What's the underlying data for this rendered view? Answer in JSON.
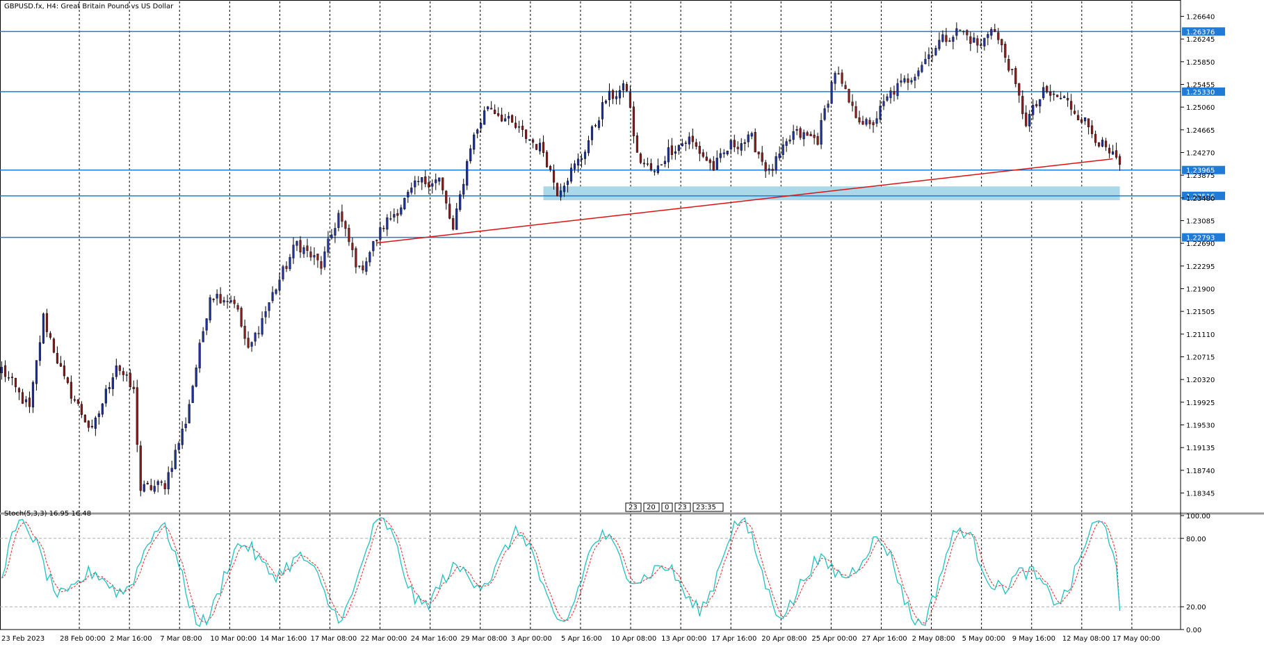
{
  "window": {
    "title": "GBPUSD.fx, H4:  Great Britain Pound vs US Dollar",
    "indicator_label": "Stoch(5,3,3) 16.95 16.48",
    "scroll_labels": [
      "23",
      "20",
      "0",
      "23",
      "23:35"
    ]
  },
  "colors": {
    "bull_candle": "#1e2f9e",
    "bear_candle": "#8b1a1a",
    "hline": "#1f7bd6",
    "trendline": "#e01010",
    "zone": "#a9d8e8",
    "stoch_main": "#20c0c0",
    "stoch_signal": "#e02020",
    "grid": "#000000"
  },
  "chart_data": {
    "type": "candlestick",
    "symbol": "GBPUSD.fx",
    "timeframe": "H4",
    "title": "GBPUSD.fx, H4:  Great Britain Pound vs US Dollar",
    "ylim": [
      1.18,
      1.269
    ],
    "y_ticks": [
      "1.26640",
      "1.26245",
      "1.25850",
      "1.25455",
      "1.25060",
      "1.24665",
      "1.24270",
      "1.23875",
      "1.23480",
      "1.23085",
      "1.22690",
      "1.22295",
      "1.21900",
      "1.21505",
      "1.21110",
      "1.20715",
      "1.20320",
      "1.19925",
      "1.19530",
      "1.19135",
      "1.18740",
      "1.18345"
    ],
    "x_labels": [
      "23 Feb 2023",
      "28 Feb 00:00",
      "2 Mar 16:00",
      "7 Mar 08:00",
      "10 Mar 00:00",
      "14 Mar 16:00",
      "17 Mar 08:00",
      "22 Mar 00:00",
      "24 Mar 16:00",
      "29 Mar 08:00",
      "3 Apr 00:00",
      "5 Apr 16:00",
      "10 Apr 08:00",
      "13 Apr 00:00",
      "17 Apr 16:00",
      "20 Apr 08:00",
      "25 Apr 00:00",
      "27 Apr 16:00",
      "2 May 08:00",
      "5 May 00:00",
      "9 May 16:00",
      "12 May 08:00",
      "17 May 00:00"
    ],
    "grid": "vertical-dashed",
    "horizontal_levels": [
      {
        "label": "1.26376",
        "value": 1.26376
      },
      {
        "label": "1.25330",
        "value": 1.2533
      },
      {
        "label": "1.23965",
        "value": 1.23965
      },
      {
        "label": "1.23516",
        "value": 1.23516
      },
      {
        "label": "1.22793",
        "value": 1.22793
      }
    ],
    "support_zone": {
      "from": 1.2344,
      "to": 1.2368
    },
    "trendline": {
      "from_index": 120,
      "from_price": 1.2272,
      "to_index": 320,
      "to_price": 1.2416
    },
    "price_anchors": [
      [
        0,
        1.205
      ],
      [
        8,
        1.198
      ],
      [
        12,
        1.214
      ],
      [
        18,
        1.203
      ],
      [
        26,
        1.194
      ],
      [
        33,
        1.206
      ],
      [
        38,
        1.201
      ],
      [
        40,
        1.184
      ],
      [
        47,
        1.185
      ],
      [
        53,
        1.196
      ],
      [
        60,
        1.218
      ],
      [
        67,
        1.217
      ],
      [
        71,
        1.208
      ],
      [
        78,
        1.218
      ],
      [
        85,
        1.227
      ],
      [
        92,
        1.223
      ],
      [
        97,
        1.232
      ],
      [
        103,
        1.222
      ],
      [
        110,
        1.23
      ],
      [
        115,
        1.2335
      ],
      [
        120,
        1.2375
      ],
      [
        126,
        1.238
      ],
      [
        130,
        1.229
      ],
      [
        135,
        1.244
      ],
      [
        140,
        1.251
      ],
      [
        148,
        1.247
      ],
      [
        156,
        1.243
      ],
      [
        160,
        1.236
      ],
      [
        167,
        1.242
      ],
      [
        174,
        1.252
      ],
      [
        180,
        1.254
      ],
      [
        183,
        1.242
      ],
      [
        188,
        1.239
      ],
      [
        192,
        1.243
      ],
      [
        198,
        1.245
      ],
      [
        205,
        1.24
      ],
      [
        210,
        1.244
      ],
      [
        216,
        1.245
      ],
      [
        221,
        1.239
      ],
      [
        228,
        1.246
      ],
      [
        235,
        1.245
      ],
      [
        240,
        1.257
      ],
      [
        245,
        1.25
      ],
      [
        250,
        1.247
      ],
      [
        256,
        1.253
      ],
      [
        262,
        1.256
      ],
      [
        270,
        1.262
      ],
      [
        276,
        1.264
      ],
      [
        282,
        1.261
      ],
      [
        285,
        1.265
      ],
      [
        290,
        1.258
      ],
      [
        295,
        1.248
      ],
      [
        300,
        1.253
      ],
      [
        306,
        1.252
      ],
      [
        312,
        1.248
      ],
      [
        318,
        1.243
      ],
      [
        322,
        1.2406
      ]
    ],
    "stoch_label": "Stoch(5,3,3) 16.95 16.48",
    "stoch_main_value": 16.95,
    "stoch_signal_value": 16.48,
    "stoch_levels": [
      20,
      80
    ],
    "stoch_y_ticks": [
      "100.00",
      "80.00",
      "20.00",
      "0.00"
    ],
    "stoch_ylim": [
      0,
      100
    ]
  }
}
